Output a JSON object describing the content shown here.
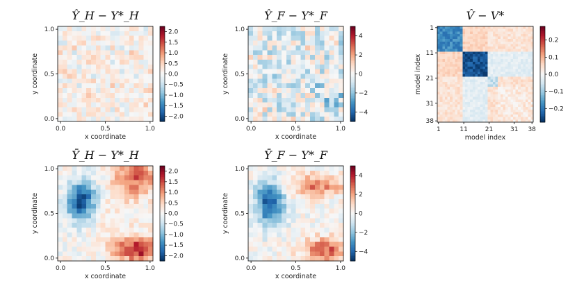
{
  "colors": {
    "neg": "#053061",
    "zero": "#f7f7f7",
    "pos": "#67001f"
  },
  "chart_data": [
    {
      "type": "heatmap",
      "title": "Ŷ_H − Y*_H",
      "xlabel": "x coordinate",
      "ylabel": "y coordinate",
      "xticks": [
        "0.0",
        "0.5",
        "1.0"
      ],
      "yticks": [
        "0.0",
        "0.5",
        "1.0"
      ],
      "xlim": [
        0,
        1
      ],
      "ylim": [
        0,
        1
      ],
      "colorbar": {
        "range": [
          -2.25,
          2.25
        ],
        "ticks": [
          2.0,
          1.5,
          1.0,
          0.5,
          0.0,
          -0.5,
          -1.0,
          -1.5,
          -2.0
        ],
        "tick_labels": [
          "2.0",
          "1.5",
          "1.0",
          "0.5",
          "0.0",
          "−0.5",
          "−1.0",
          "−1.5",
          "−2.0"
        ]
      },
      "grid_size": 20,
      "pattern": "noise-warm",
      "amplitude": 0.7,
      "seed": 11
    },
    {
      "type": "heatmap",
      "title": "Ŷ_F − Y*_F",
      "xlabel": "x coordinate",
      "ylabel": "y coordinate",
      "xticks": [
        "0.0",
        "0.5",
        "1.0"
      ],
      "yticks": [
        "0.0",
        "0.5",
        "1.0"
      ],
      "xlim": [
        0,
        1
      ],
      "ylim": [
        0,
        1
      ],
      "colorbar": {
        "range": [
          -5,
          5
        ],
        "ticks": [
          4,
          2,
          0,
          -2,
          -4
        ],
        "tick_labels": [
          "4",
          "2",
          "0",
          "−2",
          "−4"
        ]
      },
      "grid_size": 20,
      "pattern": "noise-cool",
      "amplitude": 2.2,
      "seed": 23
    },
    {
      "type": "heatmap",
      "title": "V̂ − V*",
      "xlabel": "model index",
      "ylabel": "model index",
      "xticks": [
        "1",
        "11",
        "21",
        "31",
        "38"
      ],
      "yticks": [
        "1",
        "11",
        "21",
        "31",
        "38"
      ],
      "index_range": [
        1,
        38
      ],
      "colorbar": {
        "range": [
          -0.28,
          0.28
        ],
        "ticks": [
          0.2,
          0.1,
          0.0,
          -0.1,
          -0.2
        ],
        "tick_labels": [
          "0.2",
          "0.1",
          "0.0",
          "−0.1",
          "−0.2"
        ]
      },
      "grid_size": 38,
      "pattern": "block-matrix",
      "blocks": [
        [
          1,
          10
        ],
        [
          11,
          20
        ],
        [
          21,
          24
        ],
        [
          25,
          38
        ]
      ],
      "block_values": [
        -0.18,
        -0.24,
        -0.06,
        0.03
      ],
      "offblock_value": 0.04,
      "seed": 5
    },
    {
      "type": "heatmap",
      "title": "Ȳ_H − Y*_H",
      "xlabel": "x coordinate",
      "ylabel": "y coordinate",
      "xticks": [
        "0.0",
        "0.5",
        "1.0"
      ],
      "yticks": [
        "0.0",
        "0.5",
        "1.0"
      ],
      "xlim": [
        0,
        1
      ],
      "ylim": [
        0,
        1
      ],
      "colorbar": {
        "range": [
          -2.25,
          2.25
        ],
        "ticks": [
          2.0,
          1.5,
          1.0,
          0.5,
          0.0,
          -0.5,
          -1.0,
          -1.5,
          -2.0
        ],
        "tick_labels": [
          "2.0",
          "1.5",
          "1.0",
          "0.5",
          "0.0",
          "−0.5",
          "−1.0",
          "−1.5",
          "−2.0"
        ]
      },
      "grid_size": 20,
      "pattern": "smooth-field",
      "bumps": [
        {
          "x": 0.25,
          "y": 0.62,
          "sx": 0.11,
          "sy": 0.15,
          "amp": -2.0
        },
        {
          "x": 0.85,
          "y": 0.12,
          "sx": 0.18,
          "sy": 0.09,
          "amp": 1.8
        },
        {
          "x": 0.82,
          "y": 0.88,
          "sx": 0.16,
          "sy": 0.14,
          "amp": 1.3
        },
        {
          "x": 0.55,
          "y": 0.45,
          "sx": 0.18,
          "sy": 0.18,
          "amp": 0.25
        }
      ],
      "noise": 0.35,
      "seed": 41
    },
    {
      "type": "heatmap",
      "title": "Ȳ_F − Y*_F",
      "xlabel": "x coordinate",
      "ylabel": "y coordinate",
      "xticks": [
        "0.0",
        "0.5",
        "1.0"
      ],
      "yticks": [
        "0.0",
        "0.5",
        "1.0"
      ],
      "xlim": [
        0,
        1
      ],
      "ylim": [
        0,
        1
      ],
      "colorbar": {
        "range": [
          -5,
          5
        ],
        "ticks": [
          4,
          2,
          0,
          -2,
          -4
        ],
        "tick_labels": [
          "4",
          "2",
          "0",
          "−2",
          "−4"
        ]
      },
      "grid_size": 20,
      "pattern": "smooth-field",
      "bumps": [
        {
          "x": 0.23,
          "y": 0.6,
          "sx": 0.11,
          "sy": 0.17,
          "amp": -4.2
        },
        {
          "x": 0.82,
          "y": 0.12,
          "sx": 0.18,
          "sy": 0.09,
          "amp": 2.9
        },
        {
          "x": 0.72,
          "y": 0.8,
          "sx": 0.2,
          "sy": 0.08,
          "amp": 2.6
        }
      ],
      "noise": 0.8,
      "seed": 57
    }
  ]
}
